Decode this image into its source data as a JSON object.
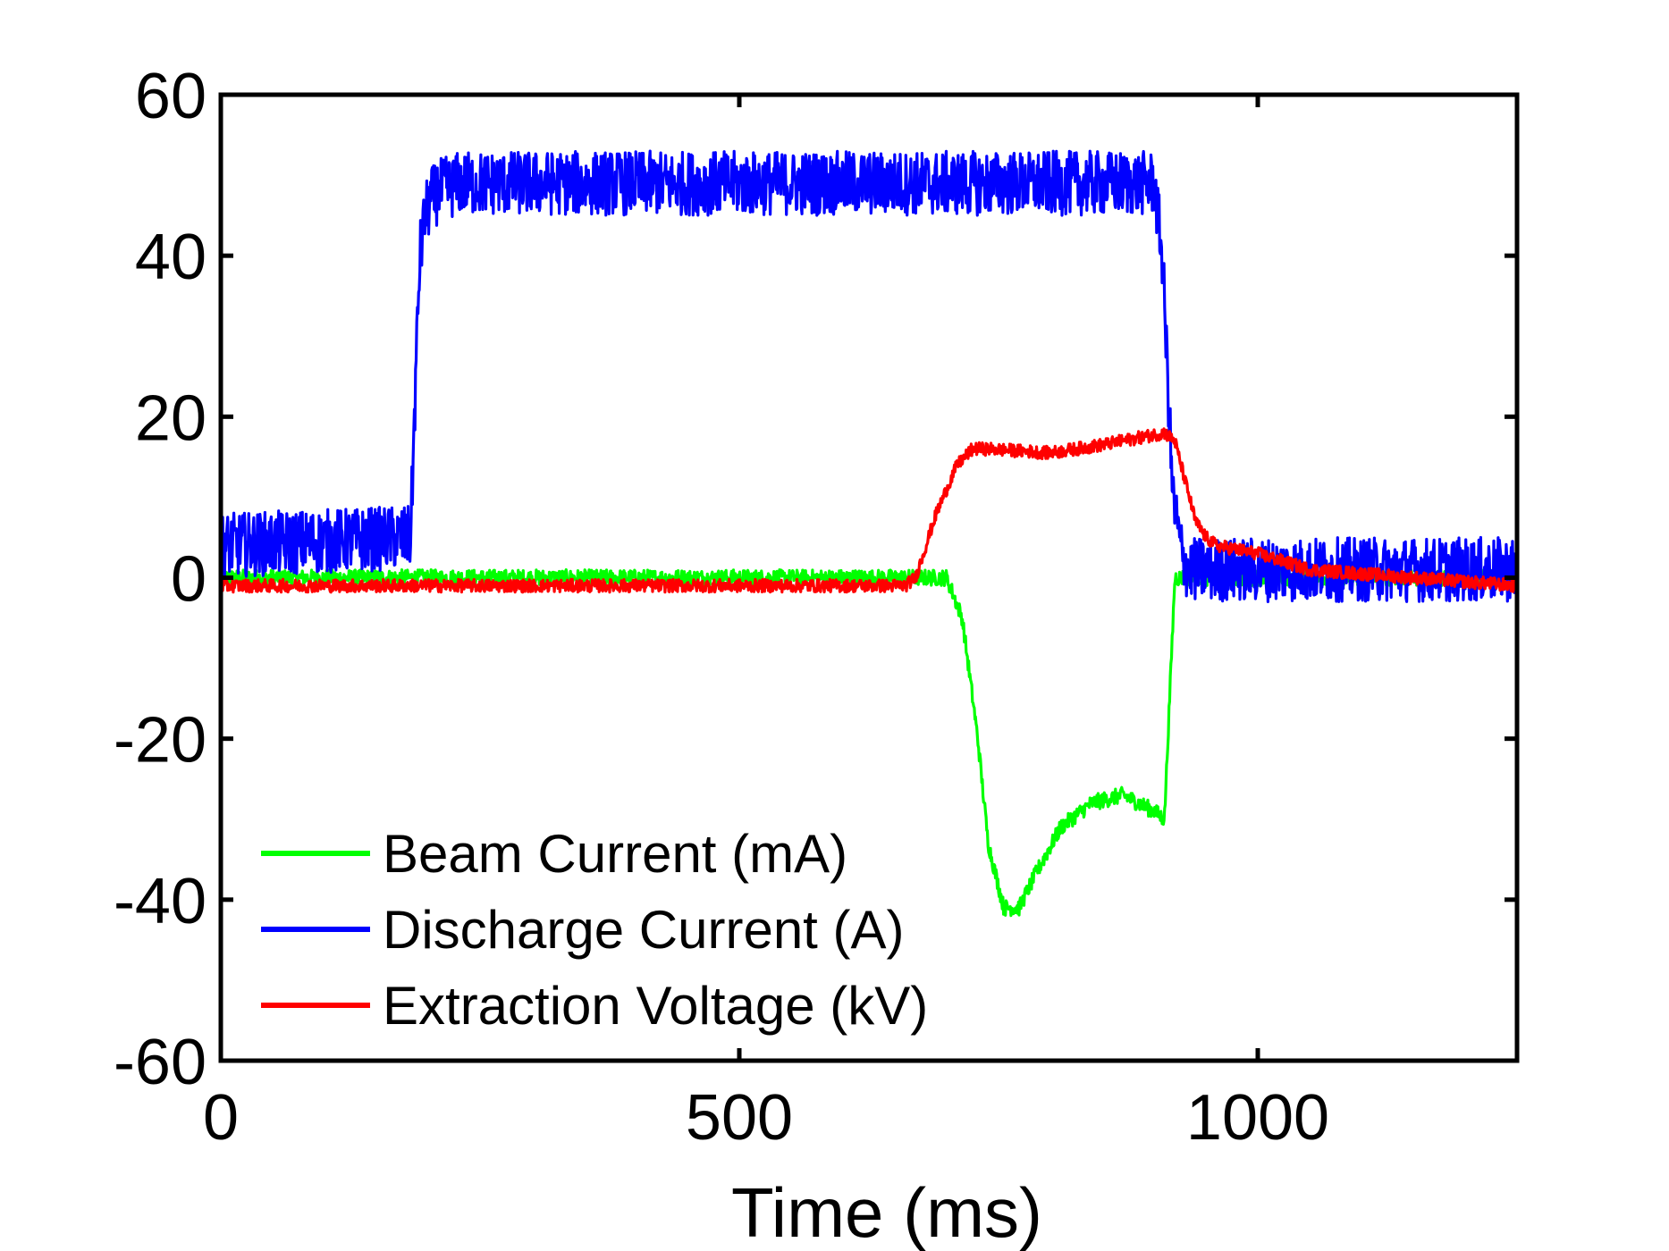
{
  "chart_data": {
    "type": "line",
    "title": "",
    "xlabel": "Time (ms)",
    "ylabel": "",
    "xlim": [
      0,
      1250
    ],
    "ylim": [
      -60,
      60
    ],
    "x_ticks": [
      0,
      500,
      1000
    ],
    "x_tick_labels": [
      "0",
      "500",
      "1000"
    ],
    "y_ticks": [
      60,
      40,
      20,
      0,
      -20,
      -40,
      -60
    ],
    "y_tick_labels": [
      "60",
      "40",
      "20",
      "0",
      "-20",
      "-40",
      "-60"
    ],
    "grid": false,
    "legend_position": "bottom-left",
    "series": [
      {
        "name": "Beam Current (mA)",
        "color": "#00ff00",
        "noise_band": 1,
        "x": [
          0,
          600,
          700,
          715,
          730,
          740,
          755,
          770,
          785,
          810,
          840,
          870,
          900,
          910,
          915,
          920,
          940,
          1000,
          1250
        ],
        "y": [
          0,
          0,
          0,
          -5,
          -20,
          -33,
          -41,
          -41,
          -37,
          -31,
          -28,
          -27,
          -29,
          -30,
          -15,
          0,
          0,
          0,
          0
        ]
      },
      {
        "name": "Discharge Current (A)",
        "color": "#0000ff",
        "noise_band": 4,
        "x": [
          0,
          183,
          188,
          192,
          197,
          203,
          210,
          230,
          260,
          900,
          908,
          918,
          928,
          935,
          945,
          1000,
          1250
        ],
        "y": [
          4,
          5,
          25,
          40,
          45,
          47,
          48,
          49,
          49,
          49,
          40,
          10,
          2,
          1,
          1,
          1,
          1
        ]
      },
      {
        "name": "Extraction Voltage (kV)",
        "color": "#ff0000",
        "noise_band": 0.8,
        "x": [
          0,
          660,
          670,
          690,
          710,
          725,
          740,
          800,
          850,
          910,
          920,
          930,
          940,
          950,
          960,
          1000,
          1050,
          1250
        ],
        "y": [
          -1,
          -1,
          0,
          8,
          14,
          16,
          16,
          15.5,
          16.5,
          18,
          17,
          12,
          7,
          5,
          4,
          3,
          1,
          -1
        ]
      }
    ]
  }
}
